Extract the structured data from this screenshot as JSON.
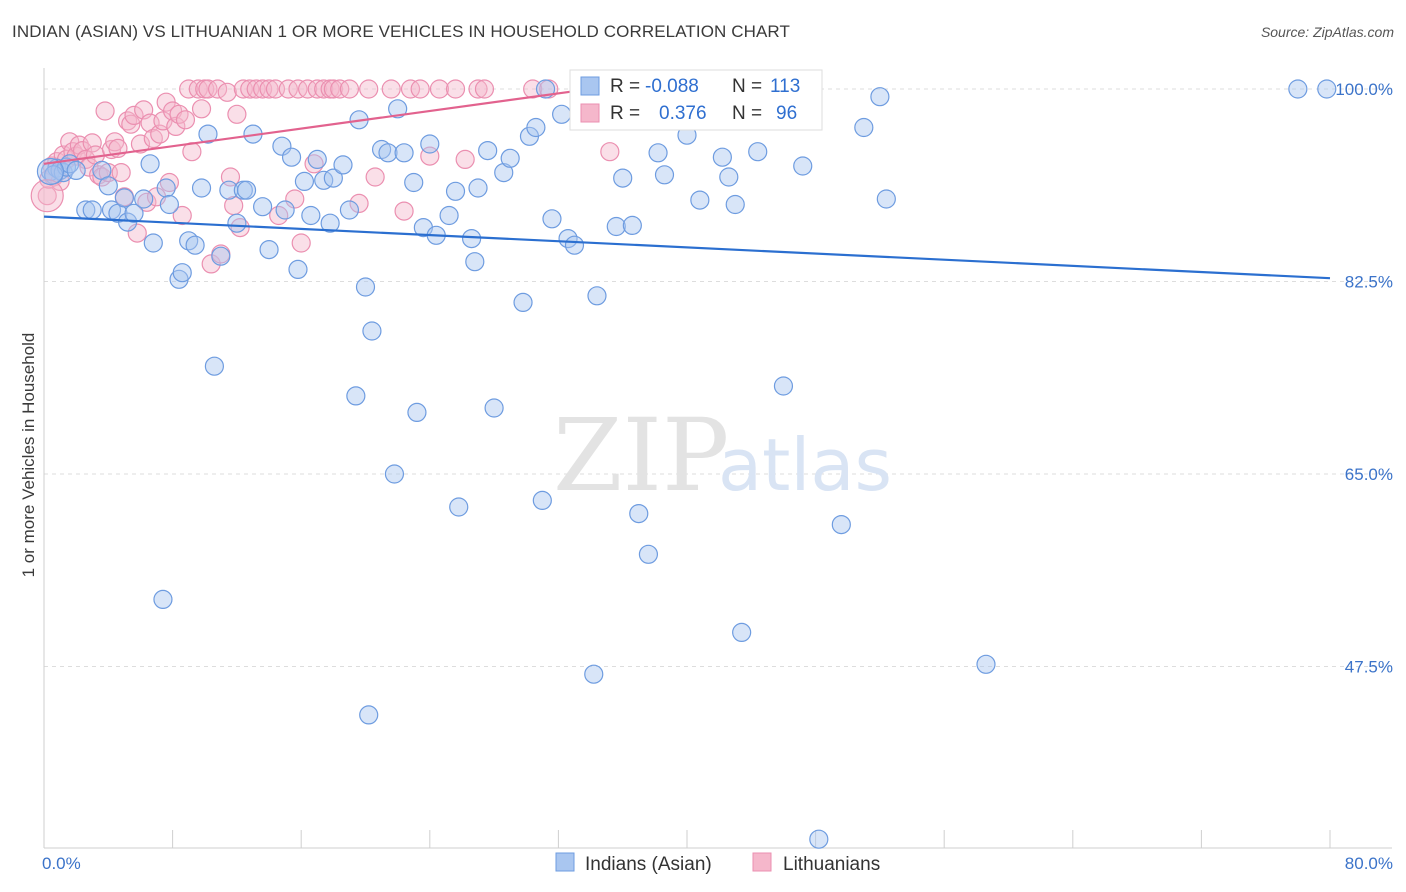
{
  "title": "INDIAN (ASIAN) VS LITHUANIAN 1 OR MORE VEHICLES IN HOUSEHOLD CORRELATION CHART",
  "source": "Source: ZipAtlas.com",
  "watermark": {
    "zip": "ZIP",
    "atlas": "atlas"
  },
  "colors": {
    "blue_fill": "#a9c6f0",
    "blue_stroke": "#6e9ce0",
    "blue_line": "#2b6fd0",
    "pink_fill": "#f5b7cb",
    "pink_stroke": "#eb8fb0",
    "pink_line": "#e2628e",
    "tick_text": "#3b73c9",
    "grid": "#dddddd"
  },
  "legend": {
    "r_label": "R =",
    "n_label": "N =",
    "series": [
      {
        "name": "Indians (Asian)",
        "r": "-0.088",
        "n": "113"
      },
      {
        "name": "Lithuanians",
        "r": "0.376",
        "n": "96"
      }
    ]
  },
  "chart_data": {
    "type": "scatter",
    "title": "INDIAN (ASIAN) VS LITHUANIAN 1 OR MORE VEHICLES IN HOUSEHOLD CORRELATION CHART",
    "xlabel": "",
    "ylabel": "1 or more Vehicles in Household",
    "xlim": [
      0,
      80
    ],
    "ylim": [
      31,
      103
    ],
    "x_tick_labels": [
      "0.0%",
      "80.0%"
    ],
    "y_ticks": [
      47.5,
      65.0,
      82.5,
      100.0
    ],
    "y_tick_labels": [
      "47.5%",
      "65.0%",
      "82.5%",
      "100.0%"
    ],
    "grid": true,
    "legend_position": "top-center",
    "series": [
      {
        "name": "Indians (Asian)",
        "color": "#a9c6f0",
        "trend": {
          "x": [
            0,
            80
          ],
          "y": [
            88.4,
            82.8
          ]
        },
        "points": [
          [
            0.4,
            92.5
          ],
          [
            0.8,
            92.8
          ],
          [
            1.0,
            92.6
          ],
          [
            1.2,
            92.4
          ],
          [
            1.4,
            92.9
          ],
          [
            1.6,
            93.2
          ],
          [
            2.0,
            92.6
          ],
          [
            2.6,
            89.0
          ],
          [
            3.0,
            89.0
          ],
          [
            3.6,
            92.6
          ],
          [
            4.0,
            91.2
          ],
          [
            4.2,
            89.0
          ],
          [
            4.6,
            88.7
          ],
          [
            5.0,
            90.1
          ],
          [
            5.2,
            87.9
          ],
          [
            5.6,
            88.7
          ],
          [
            6.2,
            90.0
          ],
          [
            6.6,
            93.2
          ],
          [
            6.8,
            86.0
          ],
          [
            7.6,
            91.0
          ],
          [
            7.8,
            89.5
          ],
          [
            8.4,
            82.7
          ],
          [
            8.6,
            83.3
          ],
          [
            9.0,
            86.2
          ],
          [
            9.4,
            85.8
          ],
          [
            9.8,
            91.0
          ],
          [
            10.2,
            95.9
          ],
          [
            10.6,
            74.8
          ],
          [
            11.0,
            84.8
          ],
          [
            11.5,
            90.8
          ],
          [
            12.0,
            87.8
          ],
          [
            12.4,
            90.8
          ],
          [
            12.6,
            90.8
          ],
          [
            13.0,
            95.9
          ],
          [
            13.6,
            89.3
          ],
          [
            14.0,
            85.4
          ],
          [
            14.8,
            94.8
          ],
          [
            15.0,
            89.0
          ],
          [
            15.4,
            93.8
          ],
          [
            15.8,
            83.6
          ],
          [
            16.2,
            91.6
          ],
          [
            16.6,
            88.5
          ],
          [
            17.0,
            93.6
          ],
          [
            17.4,
            91.7
          ],
          [
            17.8,
            87.8
          ],
          [
            18.0,
            91.9
          ],
          [
            18.6,
            93.1
          ],
          [
            19.0,
            89.0
          ],
          [
            19.4,
            72.1
          ],
          [
            19.6,
            97.2
          ],
          [
            20.0,
            82.0
          ],
          [
            20.4,
            78.0
          ],
          [
            21.0,
            94.5
          ],
          [
            21.4,
            94.2
          ],
          [
            21.8,
            65.0
          ],
          [
            22.0,
            98.2
          ],
          [
            22.4,
            94.2
          ],
          [
            23.0,
            91.5
          ],
          [
            23.2,
            70.6
          ],
          [
            23.6,
            87.4
          ],
          [
            24.0,
            95.0
          ],
          [
            24.4,
            86.7
          ],
          [
            25.6,
            90.7
          ],
          [
            25.8,
            62.0
          ],
          [
            26.6,
            86.4
          ],
          [
            26.8,
            84.3
          ],
          [
            27.0,
            91.0
          ],
          [
            27.6,
            94.4
          ],
          [
            28.0,
            71.0
          ],
          [
            28.6,
            92.4
          ],
          [
            29.0,
            93.7
          ],
          [
            29.8,
            80.6
          ],
          [
            30.2,
            95.7
          ],
          [
            30.6,
            96.5
          ],
          [
            31.0,
            62.6
          ],
          [
            31.2,
            100.0
          ],
          [
            31.6,
            88.2
          ],
          [
            32.2,
            97.7
          ],
          [
            32.6,
            86.4
          ],
          [
            33.0,
            85.8
          ],
          [
            34.2,
            46.8
          ],
          [
            34.4,
            81.2
          ],
          [
            35.6,
            87.5
          ],
          [
            36.0,
            91.9
          ],
          [
            36.6,
            87.6
          ],
          [
            37.0,
            61.4
          ],
          [
            37.6,
            57.7
          ],
          [
            38.2,
            94.2
          ],
          [
            38.6,
            92.2
          ],
          [
            39.4,
            97.9
          ],
          [
            40.0,
            95.8
          ],
          [
            40.4,
            98.9
          ],
          [
            40.8,
            89.9
          ],
          [
            42.2,
            93.8
          ],
          [
            42.6,
            92.0
          ],
          [
            43.0,
            89.5
          ],
          [
            43.4,
            50.6
          ],
          [
            44.4,
            94.3
          ],
          [
            46.0,
            73.0
          ],
          [
            46.6,
            100.0
          ],
          [
            47.2,
            93.0
          ],
          [
            48.2,
            31.8
          ],
          [
            49.6,
            60.4
          ],
          [
            51.0,
            96.5
          ],
          [
            52.0,
            99.3
          ],
          [
            52.4,
            90.0
          ],
          [
            58.6,
            47.7
          ],
          [
            79.8,
            100.0
          ],
          [
            78.0,
            100.0
          ],
          [
            20.2,
            43.1
          ],
          [
            7.4,
            53.6
          ],
          [
            0.6,
            92.2
          ],
          [
            25.2,
            88.5
          ]
        ]
      },
      {
        "name": "Lithuanians",
        "color": "#f5b7cb",
        "trend": {
          "x": [
            0,
            33
          ],
          "y": [
            93.2,
            99.8
          ]
        },
        "points": [
          [
            0.2,
            90.3
          ],
          [
            0.3,
            91.8
          ],
          [
            0.5,
            93.0
          ],
          [
            0.6,
            92.0
          ],
          [
            0.8,
            93.4
          ],
          [
            1.0,
            91.6
          ],
          [
            1.2,
            94.0
          ],
          [
            1.4,
            93.6
          ],
          [
            1.6,
            95.2
          ],
          [
            1.8,
            94.3
          ],
          [
            2.0,
            93.9
          ],
          [
            2.2,
            94.9
          ],
          [
            2.4,
            94.4
          ],
          [
            2.6,
            93.6
          ],
          [
            2.8,
            92.9
          ],
          [
            3.0,
            95.1
          ],
          [
            3.2,
            94.0
          ],
          [
            3.4,
            92.2
          ],
          [
            3.6,
            92.0
          ],
          [
            3.8,
            98.0
          ],
          [
            4.0,
            92.4
          ],
          [
            4.2,
            94.5
          ],
          [
            4.4,
            95.2
          ],
          [
            4.6,
            94.6
          ],
          [
            4.8,
            92.4
          ],
          [
            5.0,
            90.2
          ],
          [
            5.2,
            97.1
          ],
          [
            5.4,
            96.8
          ],
          [
            5.6,
            97.6
          ],
          [
            5.8,
            86.9
          ],
          [
            6.0,
            95.0
          ],
          [
            6.2,
            98.1
          ],
          [
            6.4,
            89.7
          ],
          [
            6.6,
            96.9
          ],
          [
            6.8,
            95.5
          ],
          [
            7.0,
            90.2
          ],
          [
            7.2,
            95.9
          ],
          [
            7.4,
            97.1
          ],
          [
            7.6,
            98.8
          ],
          [
            7.8,
            91.5
          ],
          [
            8.0,
            98.0
          ],
          [
            8.2,
            96.6
          ],
          [
            8.4,
            97.7
          ],
          [
            8.6,
            88.5
          ],
          [
            8.8,
            97.2
          ],
          [
            9.0,
            100.0
          ],
          [
            9.2,
            94.3
          ],
          [
            9.6,
            100.0
          ],
          [
            9.8,
            98.2
          ],
          [
            10.0,
            100.0
          ],
          [
            10.2,
            100.0
          ],
          [
            10.4,
            84.1
          ],
          [
            10.8,
            100.0
          ],
          [
            11.0,
            85.0
          ],
          [
            11.4,
            99.7
          ],
          [
            11.6,
            92.0
          ],
          [
            11.8,
            89.4
          ],
          [
            12.0,
            97.7
          ],
          [
            12.2,
            87.4
          ],
          [
            12.4,
            100.0
          ],
          [
            12.8,
            100.0
          ],
          [
            13.2,
            100.0
          ],
          [
            13.6,
            100.0
          ],
          [
            14.0,
            100.0
          ],
          [
            14.4,
            100.0
          ],
          [
            14.6,
            88.5
          ],
          [
            15.2,
            100.0
          ],
          [
            15.6,
            90.0
          ],
          [
            15.8,
            100.0
          ],
          [
            16.0,
            86.0
          ],
          [
            16.4,
            100.0
          ],
          [
            16.8,
            93.2
          ],
          [
            17.0,
            100.0
          ],
          [
            17.4,
            100.0
          ],
          [
            17.8,
            100.0
          ],
          [
            18.0,
            100.0
          ],
          [
            18.4,
            100.0
          ],
          [
            19.0,
            100.0
          ],
          [
            19.6,
            89.6
          ],
          [
            20.2,
            100.0
          ],
          [
            20.6,
            92.0
          ],
          [
            21.6,
            100.0
          ],
          [
            22.4,
            88.9
          ],
          [
            22.8,
            100.0
          ],
          [
            23.4,
            100.0
          ],
          [
            24.0,
            93.9
          ],
          [
            24.6,
            100.0
          ],
          [
            25.6,
            100.0
          ],
          [
            26.2,
            93.6
          ],
          [
            27.0,
            100.0
          ],
          [
            27.4,
            100.0
          ],
          [
            30.4,
            100.0
          ],
          [
            31.4,
            100.0
          ],
          [
            33.4,
            100.0
          ],
          [
            35.2,
            94.3
          ],
          [
            38.0,
            100.0
          ]
        ]
      }
    ]
  }
}
